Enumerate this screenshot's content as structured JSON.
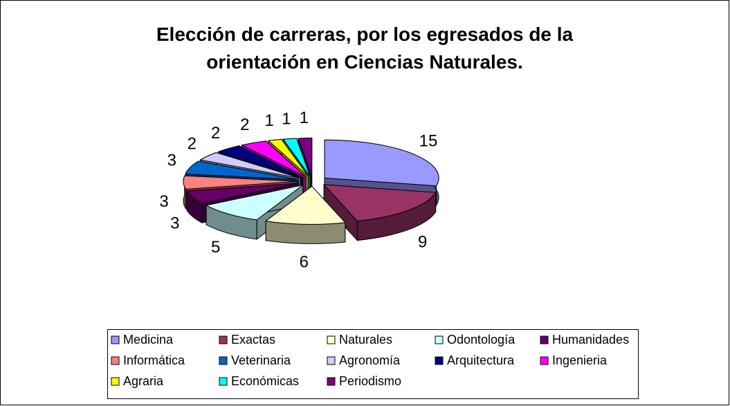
{
  "chart_data": {
    "type": "pie",
    "title": "Elección de carreras, por los egresados de la orientación en Ciencias Naturales.",
    "categories": [
      "Medicina",
      "Exactas",
      "Naturales",
      "Odontología",
      "Humanidades",
      "Informática",
      "Veterinaria",
      "Agronomía",
      "Arquitectura",
      "Ingenieria",
      "Agraria",
      "Económicas",
      "Periodismo"
    ],
    "values": [
      15,
      9,
      6,
      5,
      3,
      3,
      3,
      2,
      2,
      2,
      1,
      1,
      1
    ],
    "colors": [
      "#9999ff",
      "#993366",
      "#ffffcc",
      "#ccffff",
      "#660066",
      "#ff8080",
      "#0066cc",
      "#ccccff",
      "#000080",
      "#ff00ff",
      "#ffff00",
      "#00ffff",
      "#800080"
    ],
    "legend": "bottom"
  }
}
